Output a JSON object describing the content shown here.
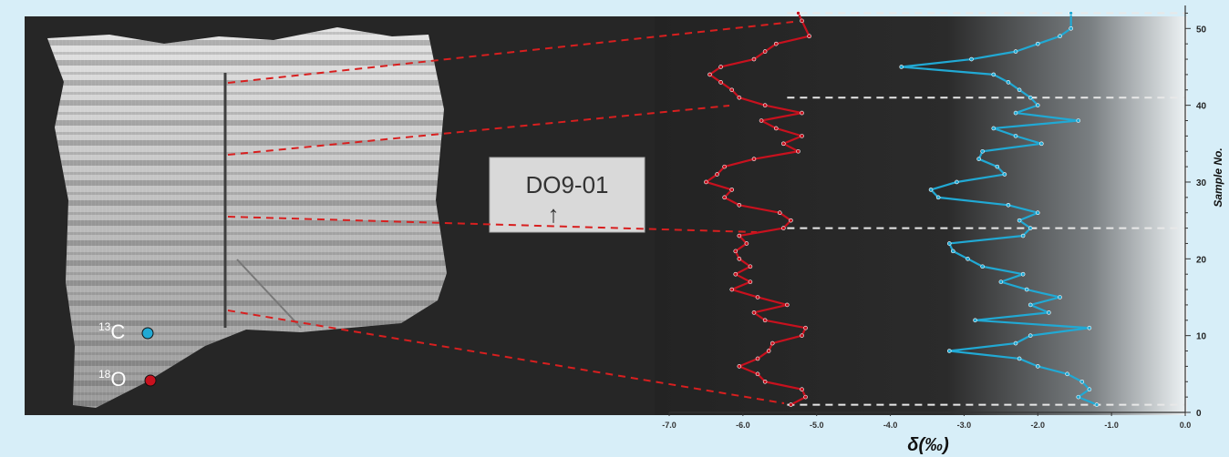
{
  "colors": {
    "frame": "#d7eef8",
    "photo_bg": "#262626",
    "oxygen_series": "#c8111e",
    "carbon_series": "#21a9d4",
    "correlation_dash": "#d81f1f",
    "boundary_dash": "#e8e8e8"
  },
  "legend": {
    "carbon_sup": "13",
    "carbon_el": "C",
    "oxygen_sup": "18",
    "oxygen_el": "O"
  },
  "specimen_label": {
    "line1": "DO9-01",
    "arrow": "↑"
  },
  "chart_data": {
    "type": "line",
    "orientation": "vertical profile (x = isotope value, y = sample number)",
    "xlabel": "δ(‰)",
    "ylabel": "Sample No.",
    "xlim": [
      -7.0,
      0.0
    ],
    "ylim": [
      0,
      53
    ],
    "x_ticks": [
      "-7.0",
      "-6.0",
      "-5.0",
      "-4.0",
      "-3.0",
      "-2.0",
      "-1.0",
      "0.0"
    ],
    "y_ticks": [
      "0",
      "10",
      "20",
      "30",
      "40",
      "50"
    ],
    "y_axis_side": "right",
    "boundary_samples": [
      1,
      24,
      41,
      52
    ],
    "series": [
      {
        "symbol": "18O",
        "color": "#c8111e",
        "points": [
          [
            -5.35,
            1
          ],
          [
            -5.15,
            2
          ],
          [
            -5.2,
            3
          ],
          [
            -5.7,
            4
          ],
          [
            -5.8,
            5
          ],
          [
            -6.05,
            6
          ],
          [
            -5.8,
            7
          ],
          [
            -5.65,
            8
          ],
          [
            -5.6,
            9
          ],
          [
            -5.2,
            10
          ],
          [
            -5.15,
            11
          ],
          [
            -5.7,
            12
          ],
          [
            -5.85,
            13
          ],
          [
            -5.4,
            14
          ],
          [
            -5.8,
            15
          ],
          [
            -6.15,
            16
          ],
          [
            -5.9,
            17
          ],
          [
            -6.1,
            18
          ],
          [
            -5.9,
            19
          ],
          [
            -6.05,
            20
          ],
          [
            -6.1,
            21
          ],
          [
            -5.95,
            22
          ],
          [
            -6.05,
            23
          ],
          [
            -5.45,
            24
          ],
          [
            -5.35,
            25
          ],
          [
            -5.5,
            26
          ],
          [
            -6.05,
            27
          ],
          [
            -6.25,
            28
          ],
          [
            -6.15,
            29
          ],
          [
            -6.5,
            30
          ],
          [
            -6.35,
            31
          ],
          [
            -6.25,
            32
          ],
          [
            -5.85,
            33
          ],
          [
            -5.25,
            34
          ],
          [
            -5.45,
            35
          ],
          [
            -5.2,
            36
          ],
          [
            -5.55,
            37
          ],
          [
            -5.75,
            38
          ],
          [
            -5.2,
            39
          ],
          [
            -5.7,
            40
          ],
          [
            -6.05,
            41
          ],
          [
            -6.15,
            42
          ],
          [
            -6.3,
            43
          ],
          [
            -6.45,
            44
          ],
          [
            -6.3,
            45
          ],
          [
            -5.85,
            46
          ],
          [
            -5.7,
            47
          ],
          [
            -5.55,
            48
          ],
          [
            -5.1,
            49
          ],
          [
            -5.2,
            51
          ],
          [
            -5.25,
            52
          ]
        ]
      },
      {
        "symbol": "13C",
        "color": "#21a9d4",
        "points": [
          [
            -1.2,
            1
          ],
          [
            -1.45,
            2
          ],
          [
            -1.3,
            3
          ],
          [
            -1.4,
            4
          ],
          [
            -1.6,
            5
          ],
          [
            -2.0,
            6
          ],
          [
            -2.25,
            7
          ],
          [
            -3.2,
            8
          ],
          [
            -2.3,
            9
          ],
          [
            -2.1,
            10
          ],
          [
            -1.3,
            11
          ],
          [
            -2.85,
            12
          ],
          [
            -1.85,
            13
          ],
          [
            -2.1,
            14
          ],
          [
            -1.7,
            15
          ],
          [
            -2.15,
            16
          ],
          [
            -2.5,
            17
          ],
          [
            -2.2,
            18
          ],
          [
            -2.75,
            19
          ],
          [
            -2.95,
            20
          ],
          [
            -3.15,
            21
          ],
          [
            -3.2,
            22
          ],
          [
            -2.2,
            23
          ],
          [
            -2.1,
            24
          ],
          [
            -2.25,
            25
          ],
          [
            -2.0,
            26
          ],
          [
            -2.4,
            27
          ],
          [
            -3.35,
            28
          ],
          [
            -3.45,
            29
          ],
          [
            -3.1,
            30
          ],
          [
            -2.45,
            31
          ],
          [
            -2.55,
            32
          ],
          [
            -2.8,
            33
          ],
          [
            -2.75,
            34
          ],
          [
            -1.95,
            35
          ],
          [
            -2.3,
            36
          ],
          [
            -2.6,
            37
          ],
          [
            -1.45,
            38
          ],
          [
            -2.3,
            39
          ],
          [
            -2.0,
            40
          ],
          [
            -2.1,
            41
          ],
          [
            -2.25,
            42
          ],
          [
            -2.4,
            43
          ],
          [
            -2.6,
            44
          ],
          [
            -3.85,
            45
          ],
          [
            -2.9,
            46
          ],
          [
            -2.3,
            47
          ],
          [
            -2.0,
            48
          ],
          [
            -1.7,
            49
          ],
          [
            -1.55,
            50
          ],
          [
            -1.55,
            52
          ]
        ]
      }
    ]
  }
}
